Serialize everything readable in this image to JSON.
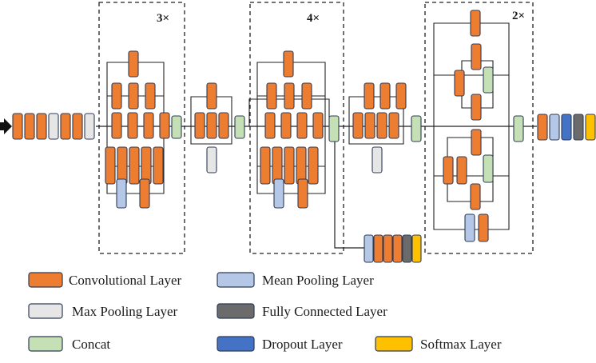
{
  "colors": {
    "conv": "#ED7D31",
    "maxpool": "#E7E6E6",
    "concat": "#C5E0B4",
    "meanpool": "#B4C7E7",
    "fc": "#6B6B6B",
    "dropout": "#4472C4",
    "softmax": "#FFC000",
    "stroke": "#2F3B55",
    "line": "#222222"
  },
  "blocks": [
    {
      "multiplier": "3×"
    },
    {
      "multiplier": "4×"
    },
    {
      "multiplier": "2×"
    }
  ],
  "legend": {
    "conv": "Convolutional Layer",
    "maxpool": "Max Pooling Layer",
    "concat": "Concat",
    "meanpool": "Mean Pooling Layer",
    "fc": "Fully Connected Layer",
    "dropout": "Dropout Layer",
    "softmax": "Softmax Layer"
  }
}
